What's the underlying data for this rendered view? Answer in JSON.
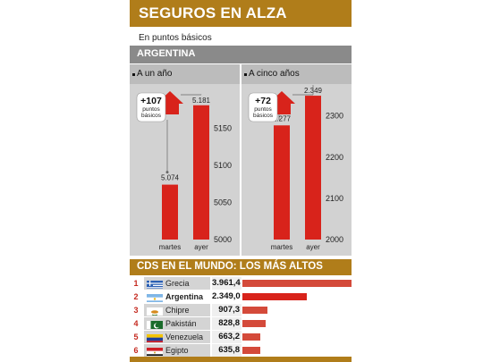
{
  "title": "SEGUROS EN ALZA",
  "subtitle": "En puntos básicos",
  "country": "ARGENTINA",
  "colors": {
    "accent": "#b07d1a",
    "bar": "#d8231b",
    "arrow": "#d8231b"
  },
  "chart_data": [
    {
      "type": "bar",
      "title": "A un año",
      "categories": [
        "martes",
        "ayer"
      ],
      "values": [
        5074,
        5181
      ],
      "value_labels": [
        "5.074",
        "5.181"
      ],
      "ylim": [
        5000,
        5200
      ],
      "yticks": [
        5000,
        5050,
        5100,
        5150
      ],
      "delta_label": "+107",
      "delta_caption": "puntos\nbásicos"
    },
    {
      "type": "bar",
      "title": "A cinco años",
      "categories": [
        "martes",
        "ayer"
      ],
      "values": [
        2277,
        2349
      ],
      "value_labels": [
        "2.277",
        "2.349"
      ],
      "ylim": [
        2000,
        2360
      ],
      "yticks": [
        2000,
        2100,
        2200,
        2300
      ],
      "delta_label": "+72",
      "delta_caption": "puntos\nbásicos"
    },
    {
      "type": "bar",
      "title": "CDS EN EL MUNDO: LOS MÁS ALTOS",
      "categories": [
        "Grecia",
        "Argentina",
        "Chipre",
        "Pakistán",
        "Venezuela",
        "Egipto"
      ],
      "values": [
        3961.4,
        2349.0,
        907.3,
        828.8,
        663.2,
        635.8
      ],
      "value_labels": [
        "3.961,4",
        "2.349,0",
        "907,3",
        "828,8",
        "663,2",
        "635,8"
      ],
      "ranks": [
        "1",
        "2",
        "3",
        "4",
        "5",
        "6"
      ]
    }
  ]
}
